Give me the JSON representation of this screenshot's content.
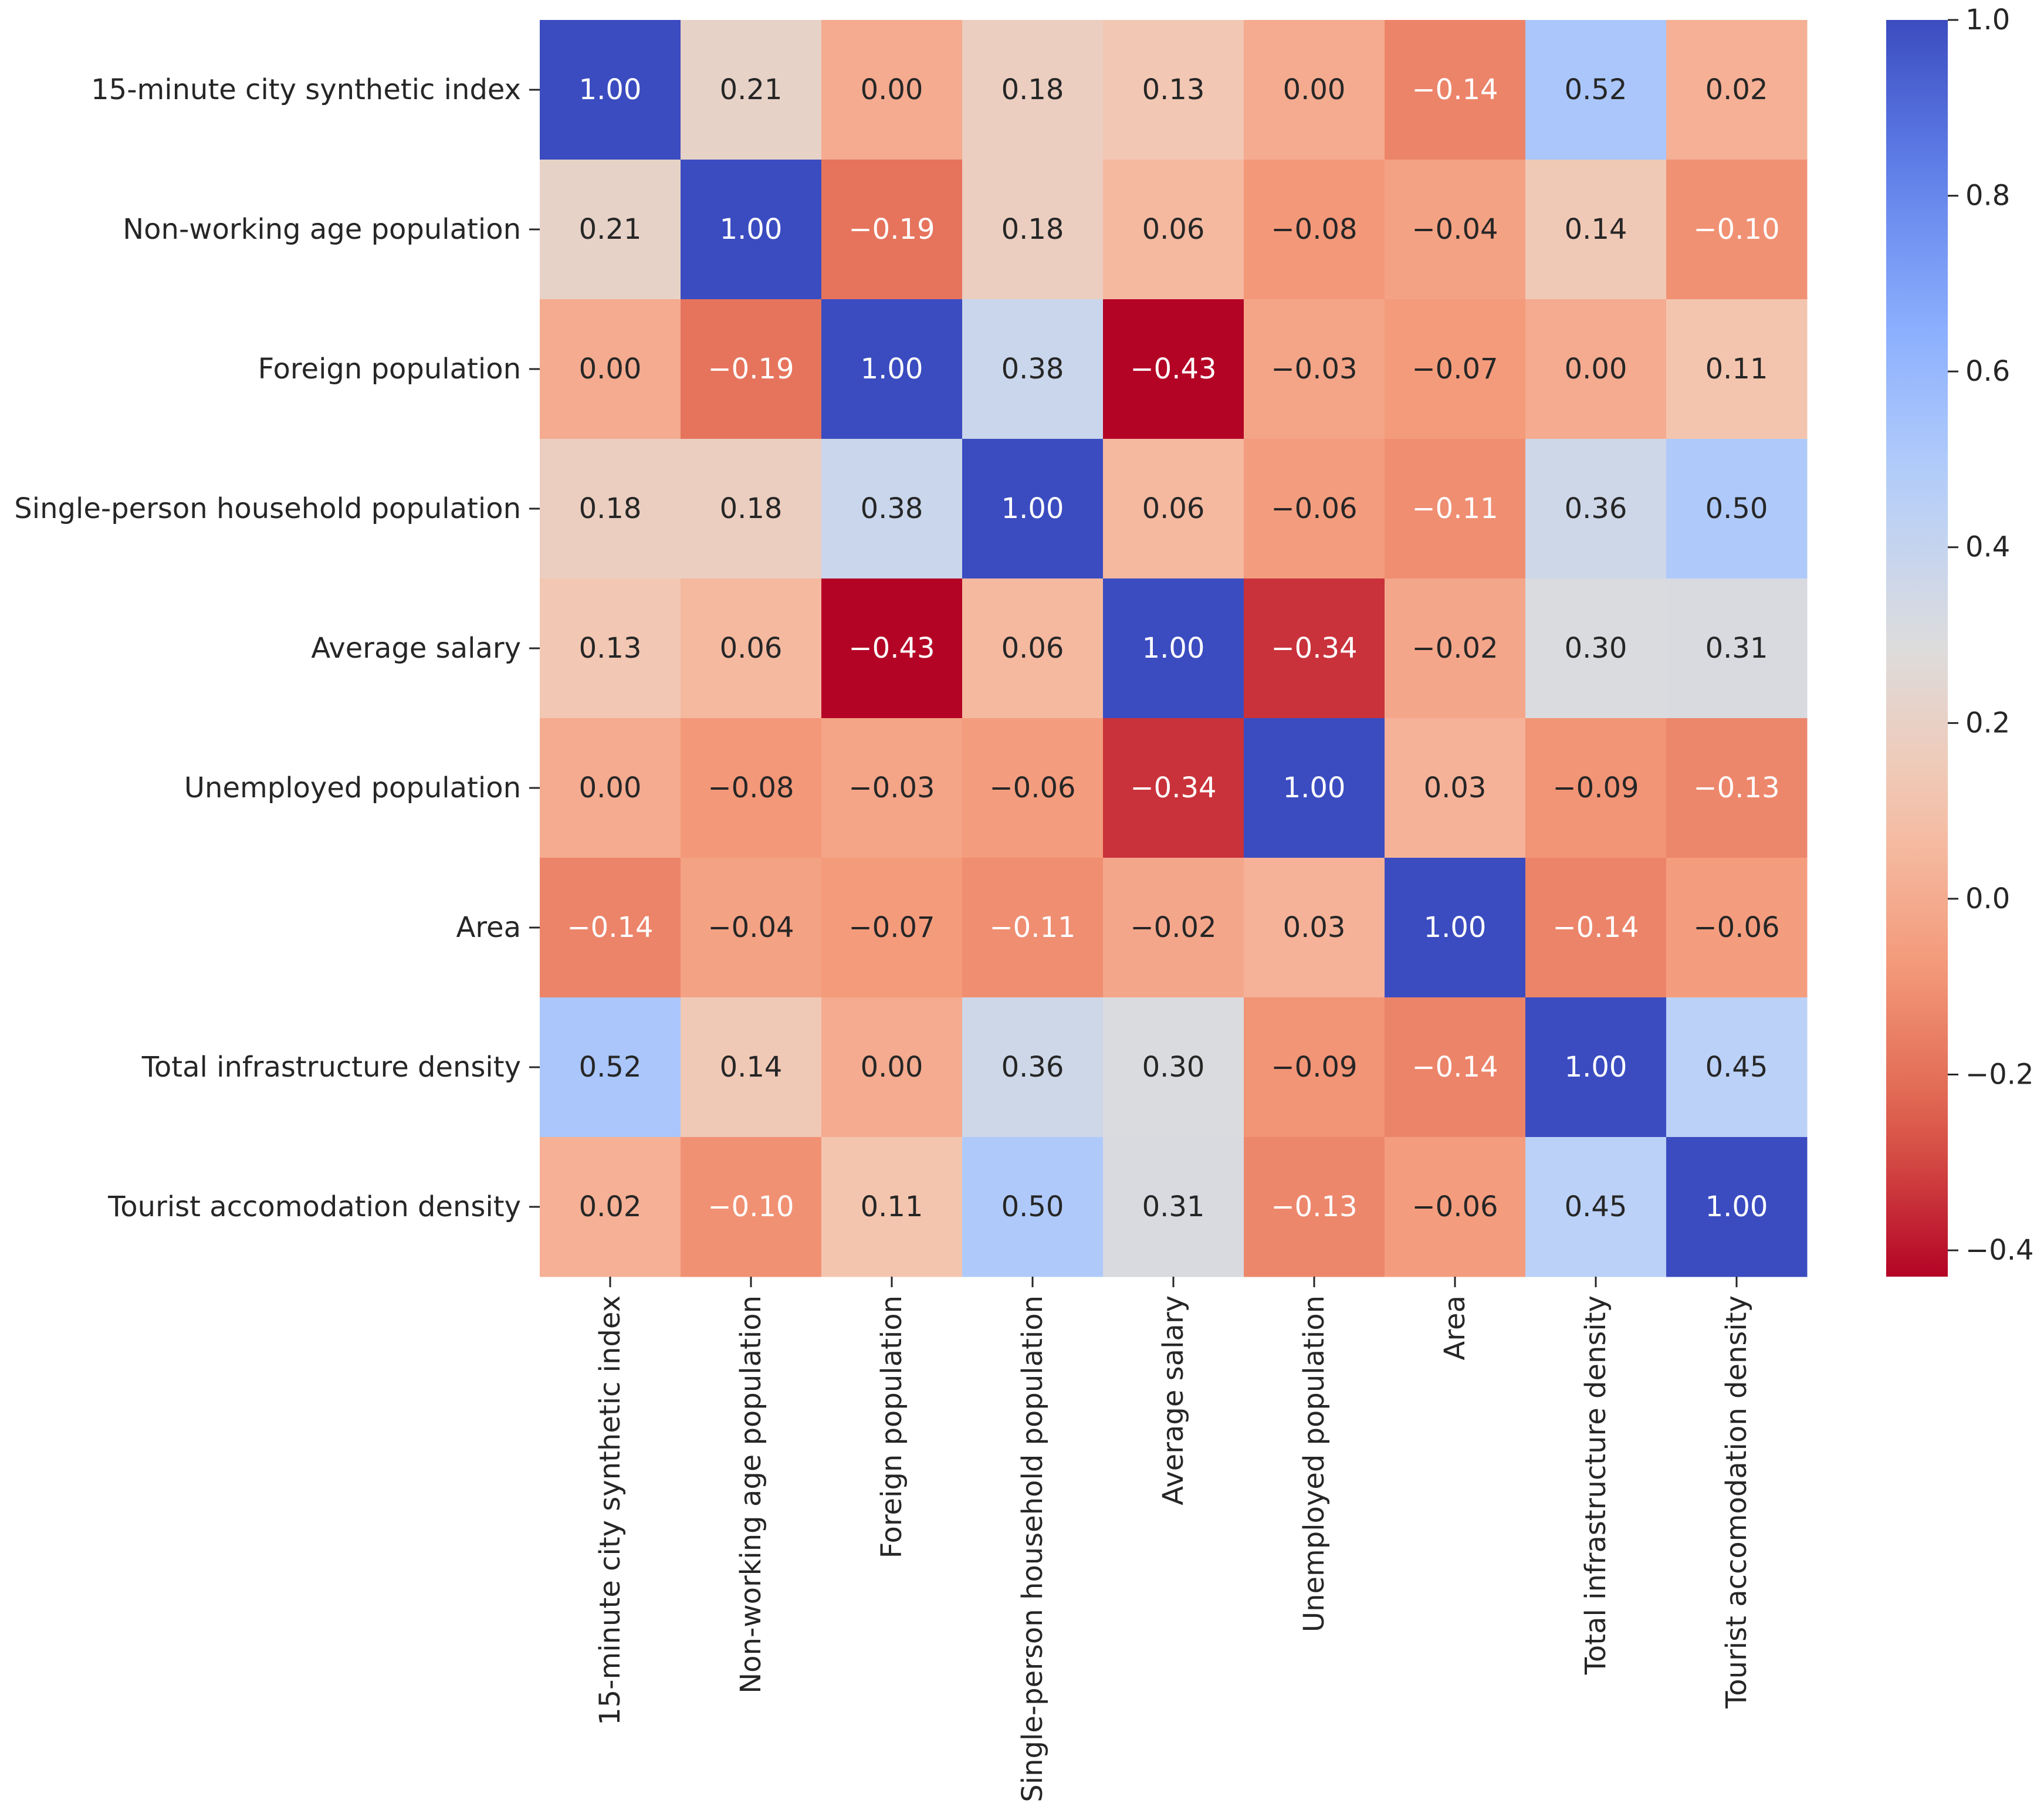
{
  "chart_data": {
    "type": "heatmap",
    "title": "",
    "xlabel": "",
    "ylabel": "",
    "labels": [
      "15-minute city synthetic index",
      "Non-working age population",
      "Foreign population",
      "Single-person household population",
      "Average salary",
      "Unemployed population",
      "Area",
      "Total infrastructure density",
      "Tourist accomodation density"
    ],
    "matrix": [
      [
        1.0,
        0.21,
        0.0,
        0.18,
        0.13,
        0.0,
        -0.14,
        0.52,
        0.02
      ],
      [
        0.21,
        1.0,
        -0.19,
        0.18,
        0.06,
        -0.08,
        -0.04,
        0.14,
        -0.1
      ],
      [
        0.0,
        -0.19,
        1.0,
        0.38,
        -0.43,
        -0.03,
        -0.07,
        0.0,
        0.11
      ],
      [
        0.18,
        0.18,
        0.38,
        1.0,
        0.06,
        -0.06,
        -0.11,
        0.36,
        0.5
      ],
      [
        0.13,
        0.06,
        -0.43,
        0.06,
        1.0,
        -0.34,
        -0.02,
        0.3,
        0.31
      ],
      [
        0.0,
        -0.08,
        -0.03,
        -0.06,
        -0.34,
        1.0,
        0.03,
        -0.09,
        -0.13
      ],
      [
        -0.14,
        -0.04,
        -0.07,
        -0.11,
        -0.02,
        0.03,
        1.0,
        -0.14,
        -0.06
      ],
      [
        0.52,
        0.14,
        0.0,
        0.36,
        0.3,
        -0.09,
        -0.14,
        1.0,
        0.45
      ],
      [
        0.02,
        -0.1,
        0.11,
        0.5,
        0.31,
        -0.13,
        -0.06,
        0.45,
        1.0
      ]
    ],
    "value_format": "0.00",
    "colormap": "coolwarm_r",
    "vmin": -0.43,
    "vmax": 1.0,
    "colorbar_ticks": [
      -0.4,
      -0.2,
      0.0,
      0.2,
      0.4,
      0.6,
      0.8,
      1.0
    ],
    "colorbar_tick_labels": [
      "−0.4",
      "−0.2",
      "0.0",
      "0.2",
      "0.4",
      "0.6",
      "0.8",
      "1.0"
    ],
    "colors": {
      "low": "#b40426",
      "mid": "#dddcdc",
      "high": "#3b4cc0"
    }
  }
}
